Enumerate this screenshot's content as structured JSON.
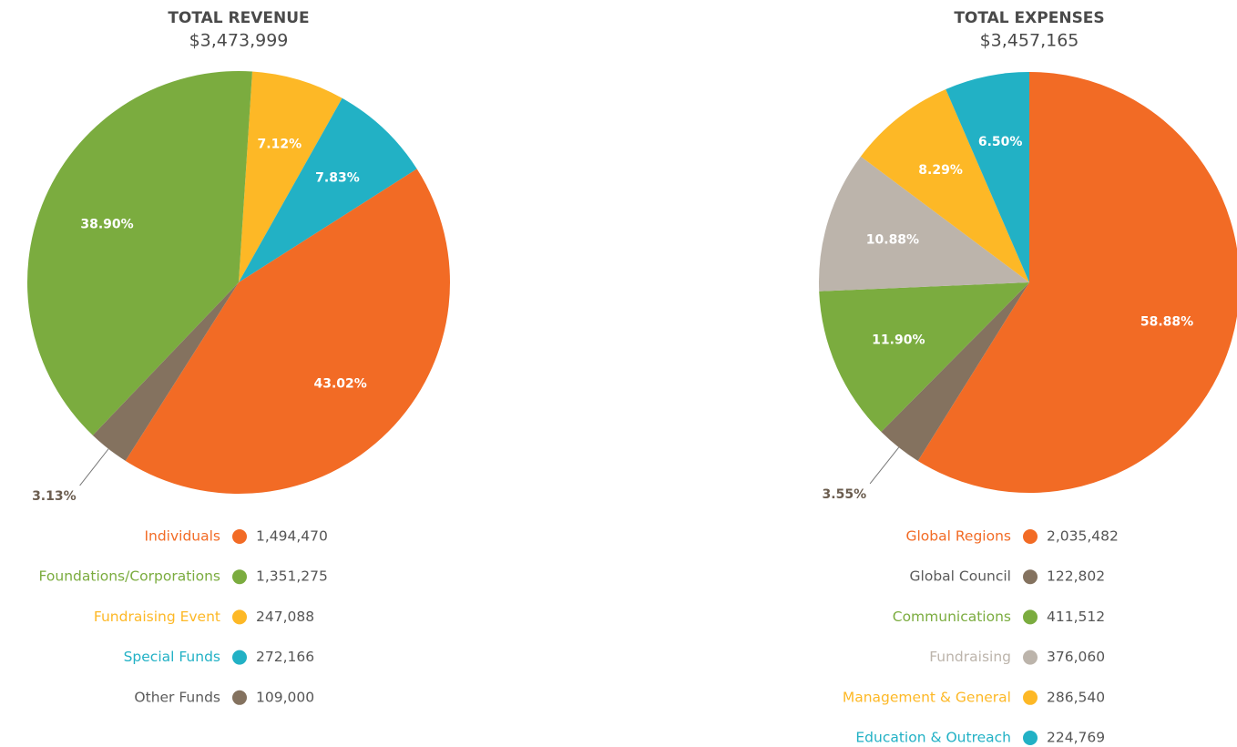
{
  "chart_data": [
    {
      "type": "pie",
      "title": "TOTAL REVENUE",
      "subtitle": "$3,473,999",
      "categories": [
        "Individuals",
        "Foundations/Corporations",
        "Fundraising Event",
        "Special Funds",
        "Other Funds"
      ],
      "values": [
        43.02,
        38.9,
        7.12,
        7.83,
        3.13
      ],
      "value_labels": [
        "43.02%",
        "38.90%",
        "7.12%",
        "7.83%",
        "3.13%"
      ],
      "amount_labels": [
        "1,494,470",
        "1,351,275",
        "247,088",
        "272,166",
        "109,000"
      ],
      "colors": [
        "#f26b25",
        "#7bac3f",
        "#fdb826",
        "#22b1c5",
        "#84725f"
      ]
    },
    {
      "type": "pie",
      "title": "TOTAL EXPENSES",
      "subtitle": "$3,457,165",
      "categories": [
        "Global Regions",
        "Global Council",
        "Communications",
        "Fundraising",
        "Management & General",
        "Education & Outreach"
      ],
      "values": [
        58.88,
        3.55,
        11.9,
        10.88,
        8.29,
        6.5
      ],
      "value_labels": [
        "58.88%",
        "3.55%",
        "11.90%",
        "10.88%",
        "8.29%",
        "6.50%"
      ],
      "amount_labels": [
        "2,035,482",
        "122,802",
        "411,512",
        "376,060",
        "286,540",
        "224,769"
      ],
      "colors": [
        "#f26b25",
        "#84725f",
        "#7bac3f",
        "#bcb4ab",
        "#fdb826",
        "#22b1c5"
      ]
    }
  ]
}
